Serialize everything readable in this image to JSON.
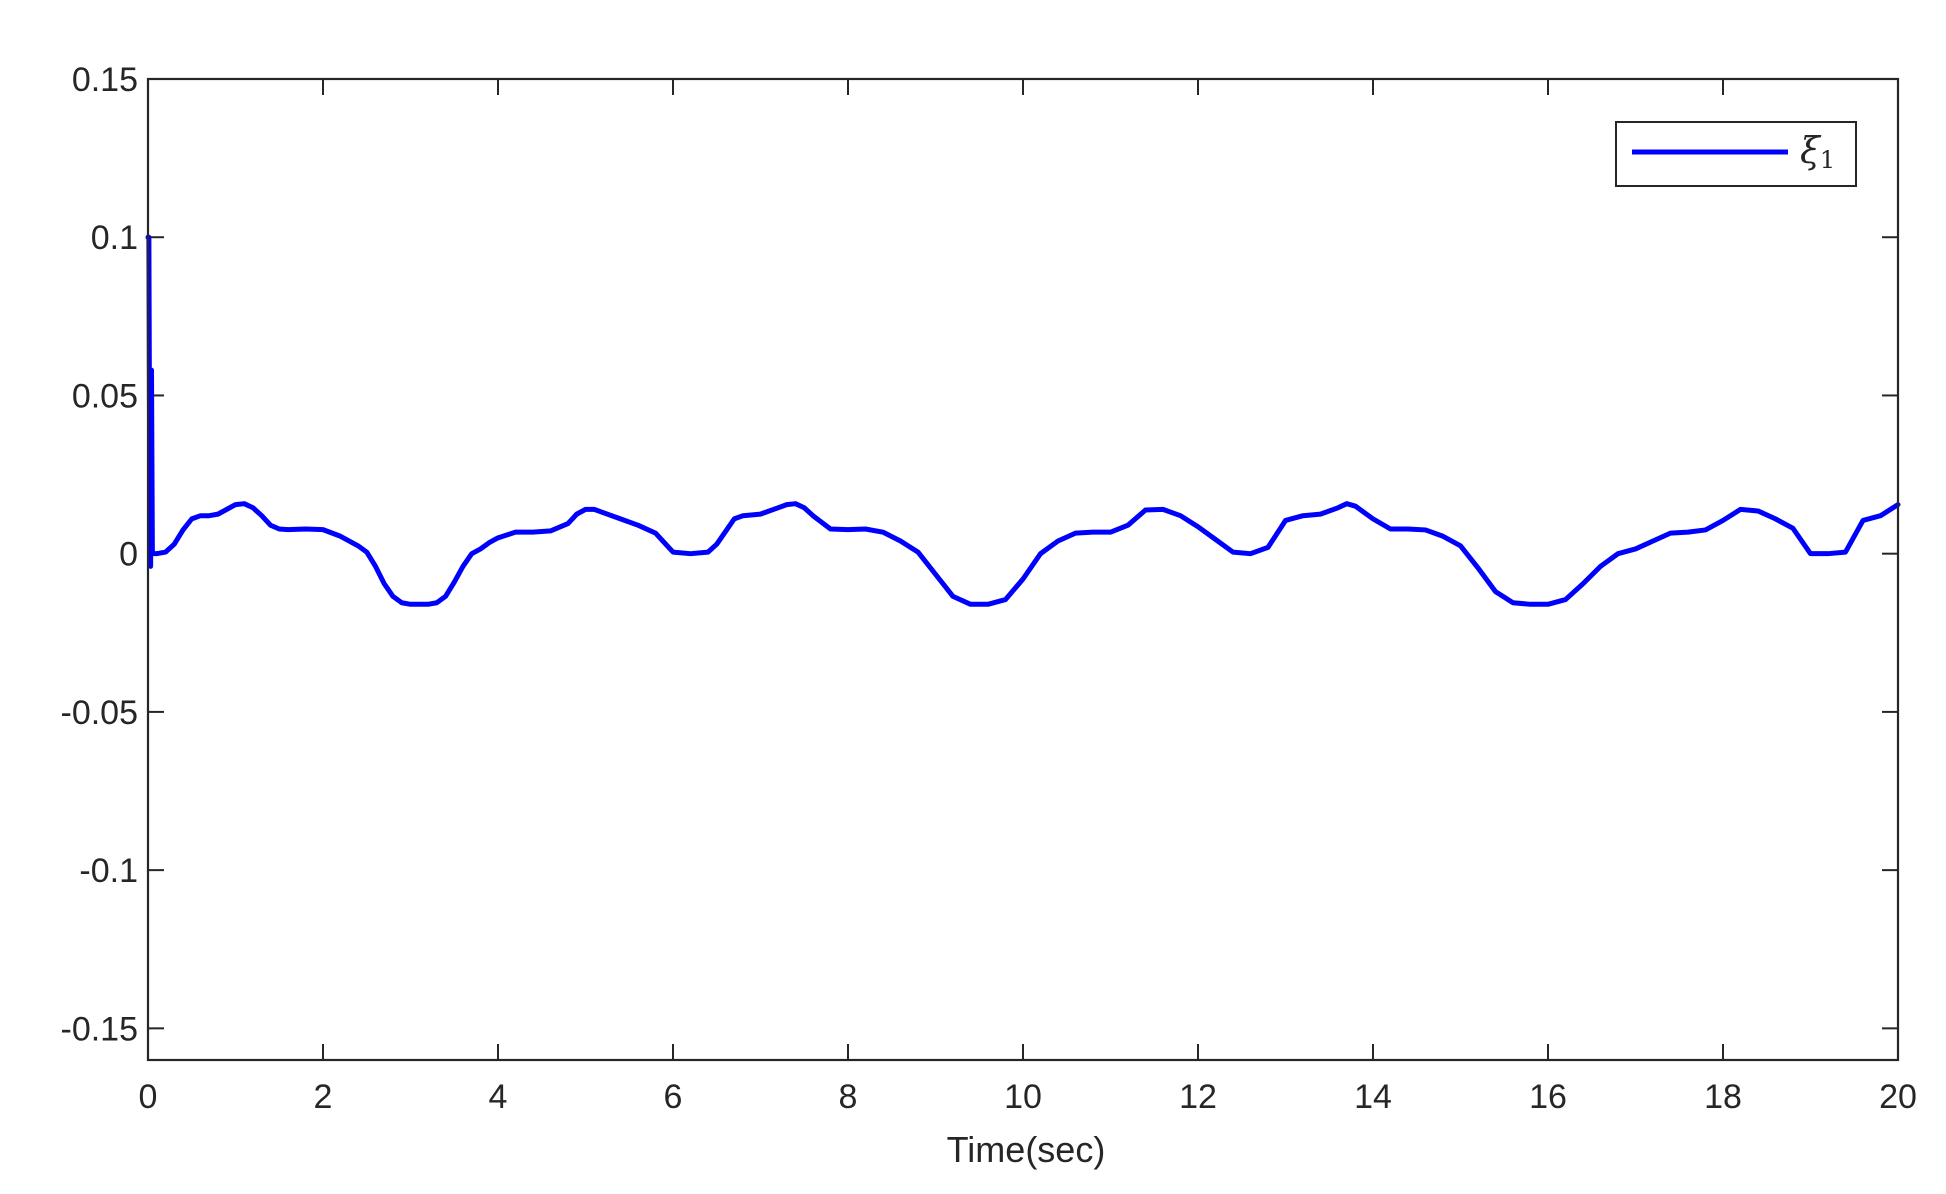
{
  "chart_data": {
    "type": "line",
    "title": "",
    "xlabel": "Time(sec)",
    "ylabel": "",
    "xlim": [
      0,
      20
    ],
    "ylim": [
      -0.16,
      0.15
    ],
    "xticks": [
      0,
      2,
      4,
      6,
      8,
      10,
      12,
      14,
      16,
      18,
      20
    ],
    "xtick_labels": [
      "0",
      "2",
      "4",
      "6",
      "8",
      "10",
      "12",
      "14",
      "16",
      "18",
      "20"
    ],
    "yticks": [
      0.15,
      0.1,
      0.05,
      0,
      -0.05,
      -0.1,
      -0.15
    ],
    "ytick_labels": [
      "0.15",
      "0.1",
      "0.05",
      "0",
      "-0.05",
      "-0.1",
      "-0.15"
    ],
    "grid": false,
    "legend_position": "top-right",
    "series": [
      {
        "name": "ξ1",
        "legend_symbol": "ξ",
        "legend_subscript": "1",
        "color": "#0000ff",
        "x": [
          0,
          0.01,
          0.02,
          0.03,
          0.04,
          0.05,
          0.06,
          0.1,
          0.2,
          0.3,
          0.4,
          0.5,
          0.6,
          0.7,
          0.8,
          0.9,
          1.0,
          1.1,
          1.2,
          1.3,
          1.4,
          1.5,
          1.6,
          1.8,
          2.0,
          2.2,
          2.4,
          2.5,
          2.6,
          2.7,
          2.8,
          2.9,
          3.0,
          3.1,
          3.2,
          3.3,
          3.4,
          3.5,
          3.6,
          3.7,
          3.8,
          3.9,
          4.0,
          4.2,
          4.4,
          4.6,
          4.8,
          4.9,
          5.0,
          5.1,
          5.2,
          5.4,
          5.6,
          5.8,
          5.9,
          6.0,
          6.2,
          6.4,
          6.5,
          6.6,
          6.7,
          6.8,
          7.0,
          7.2,
          7.3,
          7.4,
          7.5,
          7.6,
          7.8,
          8.0,
          8.2,
          8.4,
          8.6,
          8.8,
          9.0,
          9.2,
          9.4,
          9.6,
          9.8,
          10.0,
          10.2,
          10.4,
          10.6,
          10.8,
          11.0,
          11.2,
          11.4,
          11.6,
          11.8,
          12.0,
          12.2,
          12.4,
          12.6,
          12.8,
          13.0,
          13.2,
          13.4,
          13.6,
          13.7,
          13.8,
          14.0,
          14.2,
          14.4,
          14.6,
          14.8,
          15.0,
          15.2,
          15.4,
          15.6,
          15.8,
          16.0,
          16.2,
          16.4,
          16.6,
          16.8,
          17.0,
          17.2,
          17.4,
          17.6,
          17.8,
          18.0,
          18.2,
          18.4,
          18.6,
          18.8,
          19.0,
          19.2,
          19.4,
          19.6,
          19.8,
          20.0
        ],
        "y": [
          0.1,
          0.1,
          0.02,
          -0.004,
          0.058,
          0.0,
          0.0,
          0.0,
          0.0005,
          0.003,
          0.0075,
          0.011,
          0.012,
          0.012,
          0.0125,
          0.014,
          0.0155,
          0.0158,
          0.0145,
          0.012,
          0.009,
          0.0078,
          0.0076,
          0.0078,
          0.0076,
          0.0055,
          0.0025,
          0.0005,
          -0.004,
          -0.0095,
          -0.0135,
          -0.0155,
          -0.016,
          -0.016,
          -0.016,
          -0.0155,
          -0.0135,
          -0.009,
          -0.004,
          0.0,
          0.0015,
          0.0035,
          0.005,
          0.0068,
          0.0068,
          0.0072,
          0.0095,
          0.0125,
          0.014,
          0.014,
          0.013,
          0.011,
          0.009,
          0.0065,
          0.0035,
          0.0005,
          0.0,
          0.0005,
          0.003,
          0.007,
          0.011,
          0.012,
          0.0125,
          0.0145,
          0.0155,
          0.0158,
          0.0145,
          0.012,
          0.0078,
          0.0076,
          0.0078,
          0.0068,
          0.004,
          0.0005,
          -0.0065,
          -0.0135,
          -0.016,
          -0.016,
          -0.0145,
          -0.008,
          0.0,
          0.004,
          0.0065,
          0.0068,
          0.0068,
          0.009,
          0.0138,
          0.014,
          0.012,
          0.0085,
          0.0045,
          0.0005,
          0.0,
          0.002,
          0.0105,
          0.012,
          0.0125,
          0.0145,
          0.0158,
          0.015,
          0.011,
          0.0078,
          0.0078,
          0.0075,
          0.0055,
          0.0025,
          -0.0045,
          -0.012,
          -0.0155,
          -0.016,
          -0.016,
          -0.0145,
          -0.0095,
          -0.004,
          0.0,
          0.0015,
          0.004,
          0.0065,
          0.0068,
          0.0075,
          0.0105,
          0.014,
          0.0135,
          0.011,
          0.008,
          0.0,
          0.0,
          0.0005,
          0.0105,
          0.012,
          0.0155
        ]
      }
    ]
  },
  "colors": {
    "series_line": "#0000ff",
    "axis": "#262626",
    "background": "#ffffff"
  }
}
